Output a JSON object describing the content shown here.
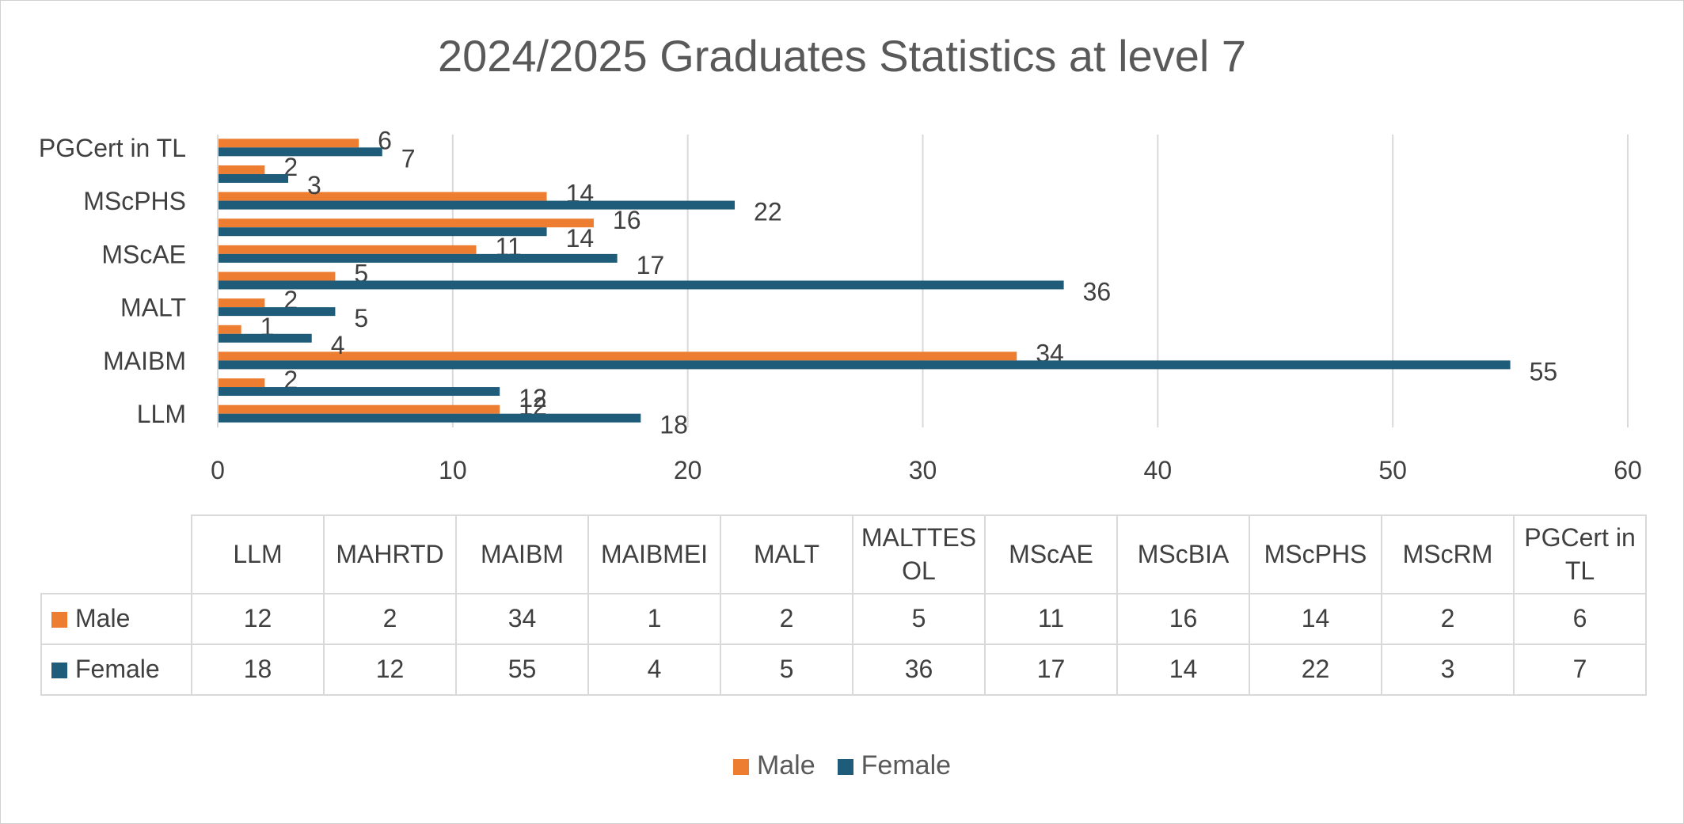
{
  "chart_data": {
    "type": "bar",
    "orientation": "horizontal",
    "title": "2024/2025 Graduates Statistics at level 7",
    "categories": [
      "LLM",
      "MAHRTD",
      "MAIBM",
      "MAIBMEI",
      "MALT",
      "MALTTESOL",
      "MScAE",
      "MScBIA",
      "MScPHS",
      "MScRM",
      "PGCert in TL"
    ],
    "axis_labels": [
      "LLM",
      "",
      "MAIBM",
      "",
      "MALT",
      "",
      "MScAE",
      "",
      "MScPHS",
      "",
      "PGCert in TL"
    ],
    "table_headers": [
      "LLM",
      "MAHRTD",
      "MAIBM",
      "MAIBMEI",
      "MALT",
      "MALTTES\nOL",
      "MScAE",
      "MScBIA",
      "MScPHS",
      "MScRM",
      "PGCert in\nTL"
    ],
    "series": [
      {
        "name": "Male",
        "color": "#ED7D31",
        "values": [
          12,
          2,
          34,
          1,
          2,
          5,
          11,
          16,
          14,
          2,
          6
        ]
      },
      {
        "name": "Female",
        "color": "#1F5C7A",
        "values": [
          18,
          12,
          55,
          4,
          5,
          36,
          17,
          14,
          22,
          3,
          7
        ]
      }
    ],
    "xlim": [
      0,
      60
    ],
    "xticks": [
      0,
      10,
      20,
      30,
      40,
      50,
      60
    ],
    "xlabel": "",
    "ylabel": "",
    "grid": true,
    "data_labels": true,
    "legend_position": "bottom",
    "data_table": true
  },
  "colors": {
    "male": "#ED7D31",
    "female": "#1F5C7A",
    "grid": "#d9d9d9",
    "text": "#404040",
    "title": "#595959"
  }
}
